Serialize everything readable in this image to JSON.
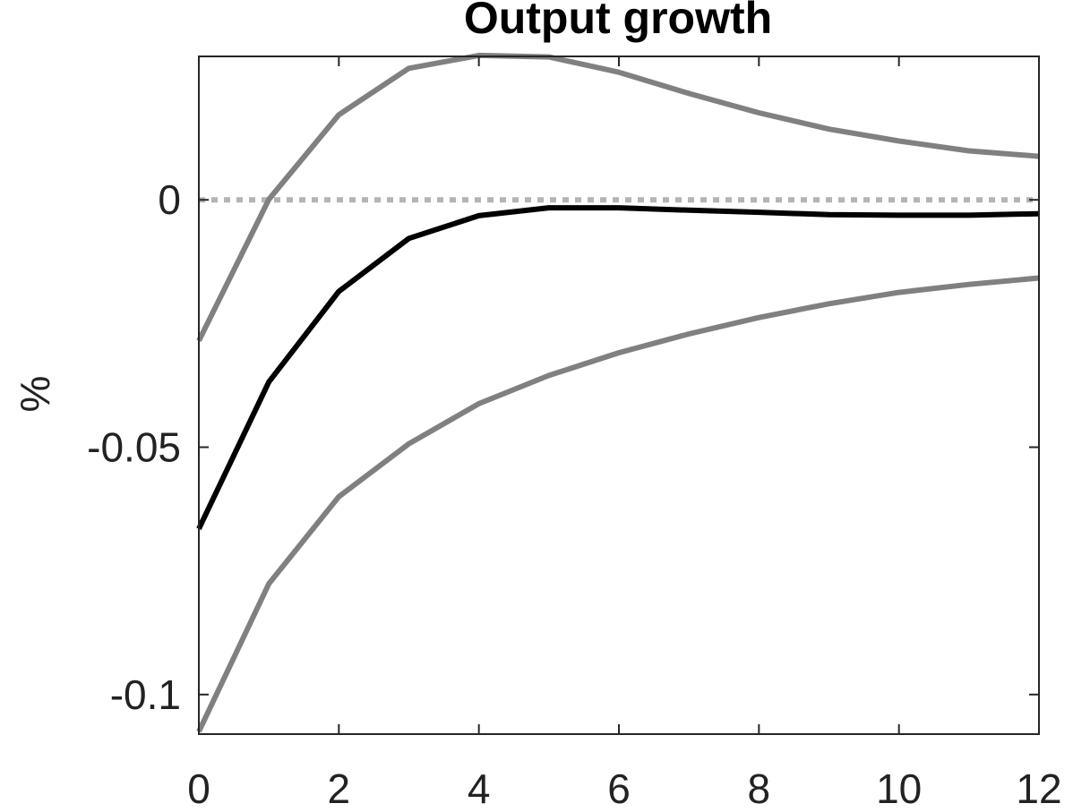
{
  "chart_data": {
    "type": "line",
    "title": "Output growth",
    "xlabel": "",
    "ylabel": "%",
    "xlim": [
      0,
      12
    ],
    "ylim": [
      -0.108,
      0.029
    ],
    "xticks": [
      0,
      2,
      4,
      6,
      8,
      10,
      12
    ],
    "xtick_labels": [
      "0",
      "2",
      "4",
      "6",
      "8",
      "10",
      "12"
    ],
    "yticks": [
      0,
      -0.05,
      -0.1
    ],
    "ytick_labels": [
      "0",
      "-0.05",
      "-0.1"
    ],
    "grid": false,
    "x": [
      0,
      1,
      2,
      3,
      4,
      5,
      6,
      7,
      8,
      9,
      10,
      11,
      12
    ],
    "series": [
      {
        "role": "upper band",
        "color": "#808080",
        "values": [
          -0.0285,
          0.0001,
          0.0172,
          0.0266,
          0.0292,
          0.0289,
          0.0258,
          0.0215,
          0.0176,
          0.0143,
          0.0119,
          0.0099,
          0.0088
        ]
      },
      {
        "role": "estimate",
        "color": "#000000",
        "values": [
          -0.0665,
          -0.0368,
          -0.0185,
          -0.0078,
          -0.0032,
          -0.0016,
          -0.0016,
          -0.0021,
          -0.0025,
          -0.003,
          -0.0031,
          -0.0031,
          -0.0028
        ]
      },
      {
        "role": "lower band",
        "color": "#808080",
        "values": [
          -0.1075,
          -0.0776,
          -0.06,
          -0.0493,
          -0.0412,
          -0.0355,
          -0.0309,
          -0.0271,
          -0.0238,
          -0.021,
          -0.0187,
          -0.0171,
          -0.0158
        ]
      }
    ],
    "zero_line": {
      "value": 0,
      "style": "dotted",
      "color": "#b4b4b4"
    }
  }
}
